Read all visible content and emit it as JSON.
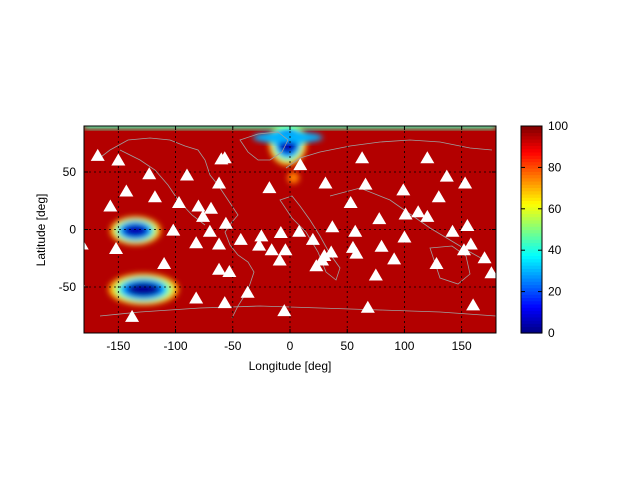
{
  "chart_data": {
    "type": "heatmap",
    "xlabel": "Longitude [deg]",
    "ylabel": "Latitude [deg]",
    "xlim": [
      -180,
      180
    ],
    "ylim": [
      -90,
      90
    ],
    "xticks": [
      -150,
      -100,
      -50,
      0,
      50,
      100,
      150
    ],
    "yticks": [
      50,
      0,
      -50
    ],
    "grid": true,
    "colorbar": {
      "min": 0,
      "max": 100,
      "ticks": [
        0,
        20,
        40,
        60,
        80,
        100
      ],
      "colormap": "jet"
    },
    "background_value": 95,
    "low_regions": [
      {
        "lon": -2,
        "lat": 75,
        "value": 5
      },
      {
        "lon": -135,
        "lat": -1,
        "value": 5
      },
      {
        "lon": -128,
        "lat": -52,
        "value": 2
      },
      {
        "lon": 3,
        "lat": 45,
        "value": 75
      }
    ],
    "markers": [
      [
        -168,
        64
      ],
      [
        -150,
        60
      ],
      [
        -123,
        48
      ],
      [
        -90,
        47
      ],
      [
        -62,
        40
      ],
      [
        -57,
        62
      ],
      [
        -157,
        20
      ],
      [
        -143,
        33
      ],
      [
        -118,
        28
      ],
      [
        -97,
        23
      ],
      [
        -80,
        20
      ],
      [
        -76,
        11
      ],
      [
        -69,
        18
      ],
      [
        -56,
        5
      ],
      [
        -102,
        -1
      ],
      [
        -82,
        -12
      ],
      [
        -70,
        -2
      ],
      [
        -62,
        -13
      ],
      [
        -43,
        -9
      ],
      [
        -27,
        -14
      ],
      [
        -16,
        -18
      ],
      [
        -182,
        -13
      ],
      [
        -185,
        -45
      ],
      [
        -152,
        -17
      ],
      [
        -110,
        -30
      ],
      [
        -62,
        -35
      ],
      [
        -53,
        -37
      ],
      [
        -37,
        -55
      ],
      [
        -57,
        -64
      ],
      [
        -138,
        -76
      ],
      [
        -82,
        -60
      ],
      [
        -5,
        -71
      ],
      [
        -25,
        -6
      ],
      [
        -9,
        -27
      ],
      [
        -4,
        -18
      ],
      [
        -8,
        -3
      ],
      [
        8,
        -2
      ],
      [
        20,
        -9
      ],
      [
        28,
        -27
      ],
      [
        23,
        -32
      ],
      [
        -60,
        61
      ],
      [
        -18,
        36
      ],
      [
        9,
        56
      ],
      [
        31,
        40
      ],
      [
        37,
        2
      ],
      [
        53,
        23
      ],
      [
        57,
        -2
      ],
      [
        75,
        -40
      ],
      [
        68,
        -68
      ],
      [
        63,
        62
      ],
      [
        66,
        39
      ],
      [
        78,
        9
      ],
      [
        91,
        -26
      ],
      [
        99,
        34
      ],
      [
        101,
        13
      ],
      [
        112,
        15
      ],
      [
        120,
        11
      ],
      [
        120,
        62
      ],
      [
        130,
        28
      ],
      [
        137,
        46
      ],
      [
        153,
        40
      ],
      [
        142,
        -2
      ],
      [
        158,
        -13
      ],
      [
        160,
        -66
      ],
      [
        176,
        -38
      ],
      [
        170,
        -25
      ],
      [
        155,
        3
      ],
      [
        152,
        -18
      ],
      [
        128,
        -30
      ],
      [
        100,
        -7
      ],
      [
        80,
        -15
      ],
      [
        55,
        -16
      ],
      [
        58,
        -21
      ],
      [
        36,
        -20
      ],
      [
        30,
        -23
      ]
    ]
  }
}
